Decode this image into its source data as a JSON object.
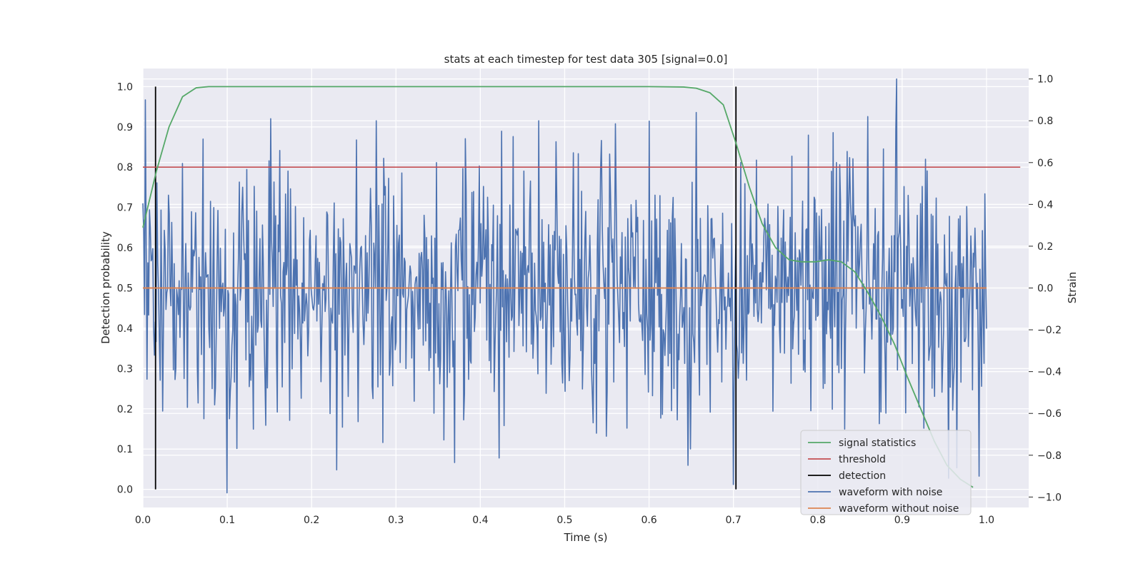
{
  "chart_data": {
    "type": "line",
    "title": "stats at each timestep for test data 305 [signal=0.0]",
    "xlabel": "Time (s)",
    "ylabel": "Detection probability",
    "y2label": "Strain",
    "xlim": [
      0.0,
      1.05
    ],
    "ylim": [
      -0.045,
      1.045
    ],
    "y2lim": [
      -1.05,
      1.05
    ],
    "xticks": [
      "0.0",
      "0.1",
      "0.2",
      "0.3",
      "0.4",
      "0.5",
      "0.6",
      "0.7",
      "0.8",
      "0.9",
      "1.0"
    ],
    "yticks": [
      "0.0",
      "0.1",
      "0.2",
      "0.3",
      "0.4",
      "0.5",
      "0.6",
      "0.7",
      "0.8",
      "0.9",
      "1.0"
    ],
    "y2ticks": [
      "−1.0",
      "−0.8",
      "−0.6",
      "−0.4",
      "−0.2",
      "0.0",
      "0.2",
      "0.4",
      "0.6",
      "0.8",
      "1.0"
    ],
    "grid": true,
    "legend_position": "lower-right",
    "series": [
      {
        "name": "signal statistics",
        "color": "#55a868",
        "axis": "left",
        "x": [
          0.0,
          0.016,
          0.031,
          0.047,
          0.063,
          0.078,
          0.094,
          0.2,
          0.4,
          0.6,
          0.641,
          0.656,
          0.672,
          0.688,
          0.703,
          0.719,
          0.734,
          0.75,
          0.766,
          0.781,
          0.797,
          0.813,
          0.828,
          0.844,
          0.859,
          0.875,
          0.891,
          0.906,
          0.922,
          0.938,
          0.953,
          0.969,
          0.984
        ],
        "y": [
          0.65,
          0.79,
          0.9,
          0.975,
          0.997,
          1.0,
          1.0,
          1.0,
          1.0,
          1.0,
          0.999,
          0.996,
          0.985,
          0.955,
          0.86,
          0.75,
          0.66,
          0.6,
          0.57,
          0.565,
          0.565,
          0.57,
          0.565,
          0.54,
          0.49,
          0.43,
          0.36,
          0.28,
          0.2,
          0.12,
          0.06,
          0.025,
          0.005
        ]
      },
      {
        "name": "threshold",
        "color": "#c44e52",
        "axis": "left",
        "x": [
          0.0,
          1.04
        ],
        "y": [
          0.8,
          0.8
        ]
      },
      {
        "name": "detection",
        "color": "#000000",
        "axis": "left",
        "segments": [
          {
            "x": 0.015,
            "y": [
              0.0,
              1.0
            ]
          },
          {
            "x": 0.703,
            "y": [
              0.0,
              1.0
            ]
          }
        ]
      },
      {
        "name": "waveform with noise",
        "color": "#4c72b0",
        "axis": "right",
        "n_points": 1024,
        "x_range": [
          0.0,
          1.0
        ],
        "y_range": [
          -1.0,
          1.0
        ],
        "peaks": [
          {
            "x": 0.003,
            "y": 0.9
          },
          {
            "x": 0.152,
            "y": 0.81
          },
          {
            "x": 0.425,
            "y": 0.75
          },
          {
            "x": 0.49,
            "y": 0.7
          },
          {
            "x": 0.656,
            "y": 0.84
          },
          {
            "x": 0.859,
            "y": 0.82
          },
          {
            "x": 0.893,
            "y": 1.0
          },
          {
            "x": 0.1,
            "y": -0.98
          },
          {
            "x": 0.23,
            "y": -0.87
          },
          {
            "x": 0.7,
            "y": -0.94
          },
          {
            "x": 0.955,
            "y": -0.91
          }
        ]
      },
      {
        "name": "waveform without noise",
        "color": "#dd8452",
        "axis": "right",
        "x": [
          0.0,
          1.0
        ],
        "y": [
          0.0,
          0.0
        ]
      }
    ]
  }
}
